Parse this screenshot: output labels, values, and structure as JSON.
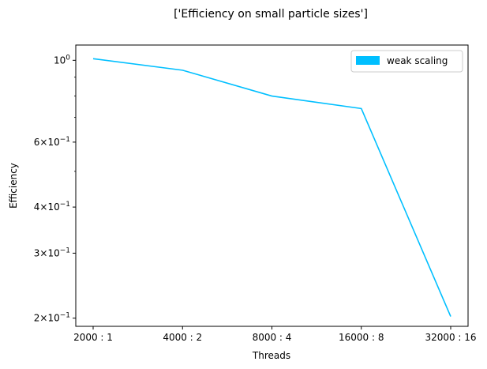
{
  "chart_data": {
    "type": "line",
    "title": "['Efficiency on small particle sizes']",
    "xlabel": "Threads",
    "ylabel": "Efficiency",
    "categories": [
      "2000 : 1",
      "4000 : 2",
      "8000 : 4",
      "16000 : 8",
      "32000 : 16"
    ],
    "series": [
      {
        "name": "weak scaling",
        "color": "#00bfff",
        "values": [
          1.01,
          0.94,
          0.8,
          0.74,
          0.202
        ]
      }
    ],
    "y_scale": "log",
    "ylim": [
      0.19,
      1.1
    ],
    "y_major_ticks": [
      {
        "value": 0.2,
        "mantissa": "2",
        "base": "10",
        "exp": "−1"
      },
      {
        "value": 0.3,
        "mantissa": "3",
        "base": "10",
        "exp": "−1"
      },
      {
        "value": 0.4,
        "mantissa": "4",
        "base": "10",
        "exp": "−1"
      },
      {
        "value": 0.6,
        "mantissa": "6",
        "base": "10",
        "exp": "−1"
      },
      {
        "value": 1.0,
        "mantissa": "",
        "base": "10",
        "exp": "0"
      }
    ],
    "y_minor_ticks": [
      0.5,
      0.7,
      0.8,
      0.9
    ],
    "grid": false,
    "legend_position": "top-right"
  }
}
